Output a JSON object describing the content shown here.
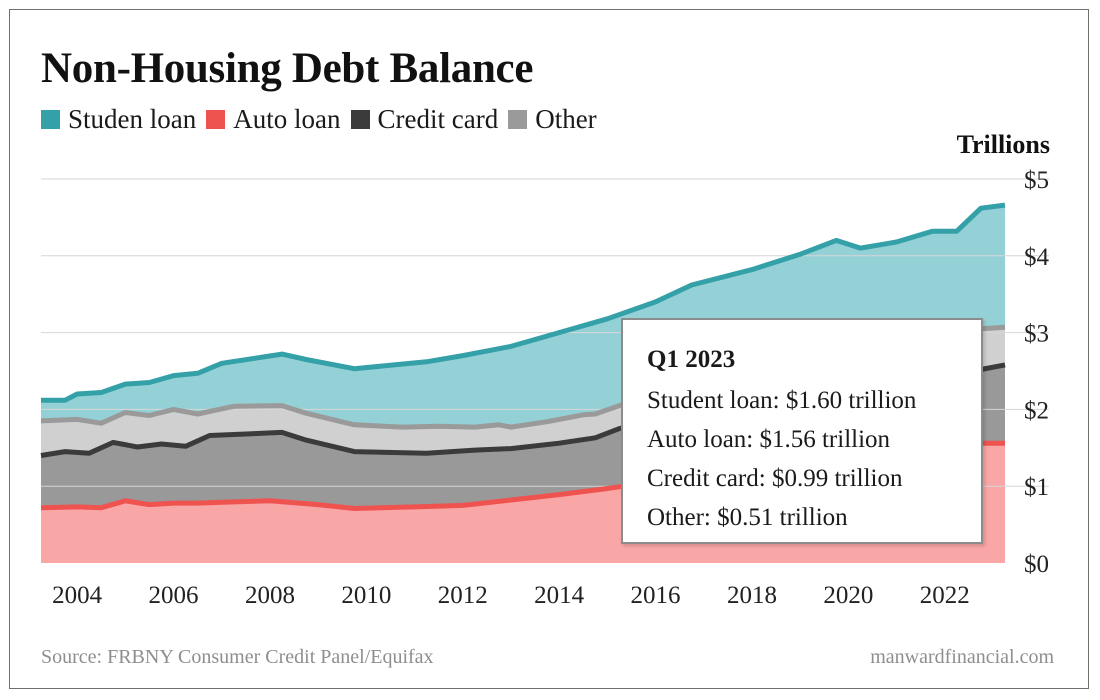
{
  "title": "Non-Housing Debt Balance",
  "units_label": "Trillions",
  "legend": [
    {
      "label": "Studen loan",
      "color": "#34a0a8"
    },
    {
      "label": "Auto loan",
      "color": "#ef5350"
    },
    {
      "label": "Credit card",
      "color": "#3b3b3b"
    },
    {
      "label": "Other",
      "color": "#9a9a9a"
    }
  ],
  "tooltip": {
    "title": "Q1 2023",
    "lines": [
      "Student loan: $1.60 trillion",
      "Auto loan: $1.56 trillion",
      "Credit card: $0.99 trillion",
      "Other: $0.51 trillion"
    ]
  },
  "source": "Source: FRBNY Consumer Credit Panel/Equifax",
  "site": "manwardfinancial.com",
  "chart_data": {
    "type": "area",
    "stacked": true,
    "x_labels": [
      "2004",
      "2006",
      "2008",
      "2010",
      "2012",
      "2014",
      "2016",
      "2018",
      "2020",
      "2022"
    ],
    "y_tick_labels": [
      "$0",
      "$1",
      "$2",
      "$3",
      "$4",
      "$5"
    ],
    "ylim": [
      0,
      5
    ],
    "xlim": [
      2003.25,
      2023.25
    ],
    "grid": true,
    "cumulative_series": [
      {
        "name": "Auto loan",
        "color": "#ef5350",
        "fill": "#f8a6a6",
        "points": [
          [
            2003.25,
            0.72
          ],
          [
            2004.0,
            0.73
          ],
          [
            2004.5,
            0.72
          ],
          [
            2005.0,
            0.81
          ],
          [
            2005.5,
            0.76
          ],
          [
            2006.0,
            0.78
          ],
          [
            2006.5,
            0.78
          ],
          [
            2007.0,
            0.79
          ],
          [
            2008.0,
            0.81
          ],
          [
            2009.0,
            0.76
          ],
          [
            2009.75,
            0.71
          ],
          [
            2011.0,
            0.73
          ],
          [
            2012.0,
            0.75
          ],
          [
            2013.0,
            0.82
          ],
          [
            2014.0,
            0.89
          ],
          [
            2015.0,
            0.97
          ],
          [
            2016.0,
            1.06
          ],
          [
            2017.0,
            1.15
          ],
          [
            2018.0,
            1.24
          ],
          [
            2019.0,
            1.32
          ],
          [
            2020.0,
            1.36
          ],
          [
            2020.5,
            1.36
          ],
          [
            2021.0,
            1.4
          ],
          [
            2021.5,
            1.45
          ],
          [
            2022.0,
            1.5
          ],
          [
            2022.75,
            1.56
          ],
          [
            2023.25,
            1.56
          ]
        ]
      },
      {
        "name": "Credit card",
        "color": "#3b3b3b",
        "fill": "#999999",
        "points": [
          [
            2003.25,
            1.4
          ],
          [
            2003.75,
            1.45
          ],
          [
            2004.25,
            1.43
          ],
          [
            2004.75,
            1.57
          ],
          [
            2005.25,
            1.51
          ],
          [
            2005.75,
            1.55
          ],
          [
            2006.25,
            1.52
          ],
          [
            2006.75,
            1.66
          ],
          [
            2007.5,
            1.68
          ],
          [
            2008.25,
            1.7
          ],
          [
            2008.75,
            1.6
          ],
          [
            2009.75,
            1.45
          ],
          [
            2011.25,
            1.43
          ],
          [
            2012.25,
            1.47
          ],
          [
            2013.0,
            1.49
          ],
          [
            2014.0,
            1.56
          ],
          [
            2014.75,
            1.63
          ],
          [
            2015.25,
            1.75
          ],
          [
            2016.0,
            1.85
          ],
          [
            2017.0,
            1.95
          ],
          [
            2018.0,
            2.05
          ],
          [
            2019.0,
            2.15
          ],
          [
            2020.0,
            2.2
          ],
          [
            2021.0,
            2.25
          ],
          [
            2022.0,
            2.4
          ],
          [
            2022.75,
            2.52
          ],
          [
            2023.25,
            2.58
          ]
        ]
      },
      {
        "name": "Other",
        "color": "#9a9a9a",
        "fill": "#d0d0d0",
        "points": [
          [
            2003.25,
            1.85
          ],
          [
            2004.0,
            1.87
          ],
          [
            2004.5,
            1.82
          ],
          [
            2005.0,
            1.96
          ],
          [
            2005.5,
            1.92
          ],
          [
            2006.0,
            2.0
          ],
          [
            2006.5,
            1.94
          ],
          [
            2007.25,
            2.04
          ],
          [
            2008.25,
            2.05
          ],
          [
            2008.75,
            1.95
          ],
          [
            2009.75,
            1.8
          ],
          [
            2010.75,
            1.77
          ],
          [
            2011.5,
            1.78
          ],
          [
            2012.25,
            1.77
          ],
          [
            2012.75,
            1.8
          ],
          [
            2013.0,
            1.77
          ],
          [
            2013.75,
            1.84
          ],
          [
            2014.5,
            1.93
          ],
          [
            2014.75,
            1.94
          ],
          [
            2015.25,
            2.05
          ],
          [
            2016.0,
            2.2
          ],
          [
            2017.0,
            2.35
          ],
          [
            2018.0,
            2.5
          ],
          [
            2019.0,
            2.65
          ],
          [
            2020.0,
            2.8
          ],
          [
            2021.0,
            2.9
          ],
          [
            2022.0,
            3.0
          ],
          [
            2022.75,
            3.05
          ],
          [
            2023.25,
            3.07
          ]
        ]
      },
      {
        "name": "Studen loan",
        "color": "#34a0a8",
        "fill": "#94d1d6",
        "points": [
          [
            2003.25,
            2.12
          ],
          [
            2003.75,
            2.12
          ],
          [
            2004.0,
            2.2
          ],
          [
            2004.5,
            2.22
          ],
          [
            2005.0,
            2.33
          ],
          [
            2005.5,
            2.35
          ],
          [
            2006.0,
            2.44
          ],
          [
            2006.5,
            2.47
          ],
          [
            2007.0,
            2.6
          ],
          [
            2008.25,
            2.72
          ],
          [
            2008.75,
            2.65
          ],
          [
            2009.75,
            2.53
          ],
          [
            2011.25,
            2.62
          ],
          [
            2012.0,
            2.7
          ],
          [
            2013.0,
            2.82
          ],
          [
            2014.0,
            3.0
          ],
          [
            2015.0,
            3.18
          ],
          [
            2016.0,
            3.4
          ],
          [
            2016.75,
            3.62
          ],
          [
            2018.0,
            3.82
          ],
          [
            2019.0,
            4.02
          ],
          [
            2019.75,
            4.2
          ],
          [
            2020.25,
            4.1
          ],
          [
            2021.0,
            4.18
          ],
          [
            2021.75,
            4.32
          ],
          [
            2022.25,
            4.32
          ],
          [
            2022.75,
            4.62
          ],
          [
            2023.25,
            4.66
          ]
        ]
      }
    ]
  }
}
